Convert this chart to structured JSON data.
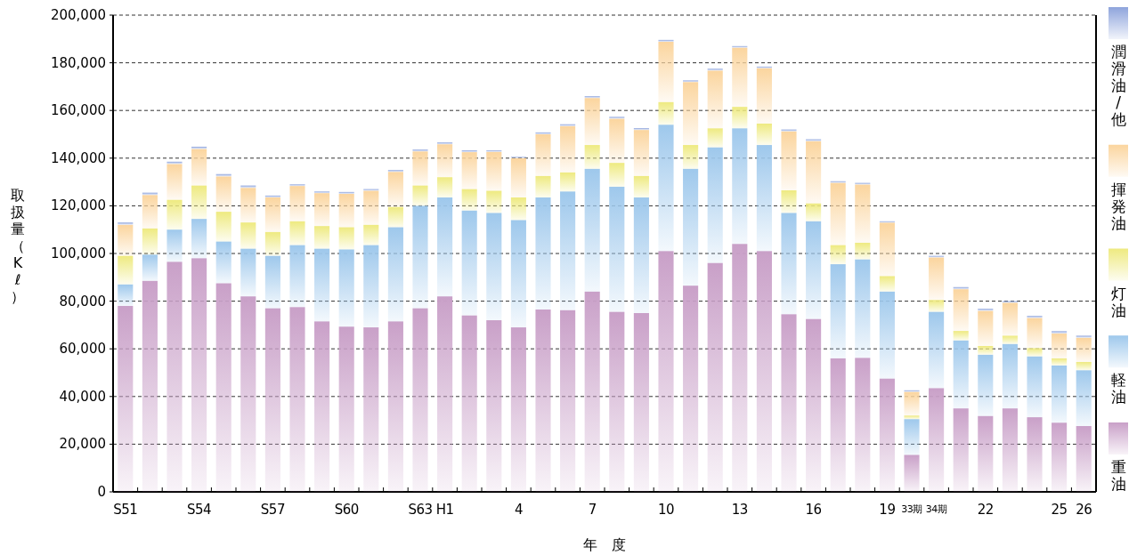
{
  "chart_data": {
    "type": "bar",
    "stacked": true,
    "xlabel": "年　度",
    "ylabel": "取扱量（Kℓ）",
    "legend": "right",
    "grid": "y",
    "line_style": "dashed",
    "categories": [
      "S51",
      null,
      null,
      "S54",
      null,
      null,
      "S57",
      null,
      null,
      "S60",
      null,
      null,
      "S63",
      "H1",
      null,
      null,
      "4",
      null,
      null,
      "7",
      null,
      null,
      "10",
      null,
      null,
      "13",
      null,
      null,
      "16",
      null,
      null,
      "19",
      "33期",
      "34期",
      null,
      "22",
      null,
      null,
      "25",
      "26"
    ],
    "ylim": [
      0,
      200000
    ],
    "yticks": [
      {
        "value": 0,
        "label": "0"
      },
      {
        "value": 20000,
        "label": "20,000"
      },
      {
        "value": 40000,
        "label": "40,000"
      },
      {
        "value": 60000,
        "label": "60,000"
      },
      {
        "value": 80000,
        "label": "80,000"
      },
      {
        "value": 100000,
        "label": "100,000"
      },
      {
        "value": 120000,
        "label": "120,000"
      },
      {
        "value": 140000,
        "label": "140,000"
      },
      {
        "value": 160000,
        "label": "160,000"
      },
      {
        "value": 180000,
        "label": "180,000"
      },
      {
        "value": 200000,
        "label": "200,000"
      }
    ],
    "series": [
      {
        "name": "重油",
        "color": "#c9a0c8",
        "values": [
          78000,
          88500,
          96500,
          98000,
          87500,
          82000,
          77000,
          77500,
          71500,
          69300,
          69000,
          71500,
          77000,
          82000,
          74000,
          72000,
          69000,
          76500,
          76200,
          84000,
          75500,
          75000,
          101000,
          86500,
          96000,
          104000,
          101000,
          74500,
          72500,
          56000,
          56200,
          47500,
          15500,
          43500,
          35000,
          31800,
          35000,
          31300,
          29000,
          27600
        ]
      },
      {
        "name": "軽油",
        "color": "#9ec8ec",
        "values": [
          9000,
          11000,
          13500,
          16500,
          17500,
          20000,
          22000,
          26000,
          30500,
          32400,
          34500,
          39500,
          43000,
          41500,
          44000,
          45000,
          45000,
          47000,
          49800,
          51500,
          52500,
          48500,
          53000,
          49000,
          48500,
          48500,
          44500,
          42500,
          41000,
          39500,
          41300,
          36500,
          15000,
          32000,
          28500,
          25700,
          27000,
          25500,
          24000,
          23400
        ]
      },
      {
        "name": "灯油",
        "color": "#eeea80",
        "values": [
          12000,
          11000,
          12500,
          14000,
          12500,
          11000,
          10000,
          10000,
          9500,
          9300,
          8500,
          8500,
          8500,
          8500,
          9000,
          9300,
          9500,
          9000,
          8000,
          10000,
          10000,
          9000,
          9500,
          10000,
          8000,
          9000,
          9000,
          9500,
          7500,
          8000,
          7000,
          6500,
          1500,
          5000,
          4000,
          3700,
          3500,
          3500,
          3000,
          3500
        ]
      },
      {
        "name": "揮発油",
        "color": "#fbd59e",
        "values": [
          13000,
          14000,
          15000,
          15300,
          14800,
          14500,
          14500,
          14800,
          13800,
          14000,
          14300,
          14700,
          14300,
          13800,
          15500,
          16300,
          16500,
          17500,
          19400,
          19700,
          18500,
          19300,
          25300,
          26400,
          24200,
          24800,
          23200,
          24700,
          26100,
          26100,
          24400,
          22400,
          9900,
          17800,
          17500,
          14700,
          13800,
          12600,
          10400,
          10100
        ]
      },
      {
        "name": "潤滑油/他",
        "color": "#8ea4dc",
        "values": [
          1000,
          1000,
          1000,
          1000,
          1000,
          1000,
          800,
          700,
          700,
          800,
          700,
          800,
          800,
          800,
          800,
          700,
          500,
          800,
          800,
          800,
          800,
          800,
          800,
          700,
          800,
          700,
          700,
          800,
          800,
          700,
          700,
          600,
          700,
          700,
          900,
          900,
          700,
          900,
          1000,
          900
        ]
      }
    ]
  }
}
